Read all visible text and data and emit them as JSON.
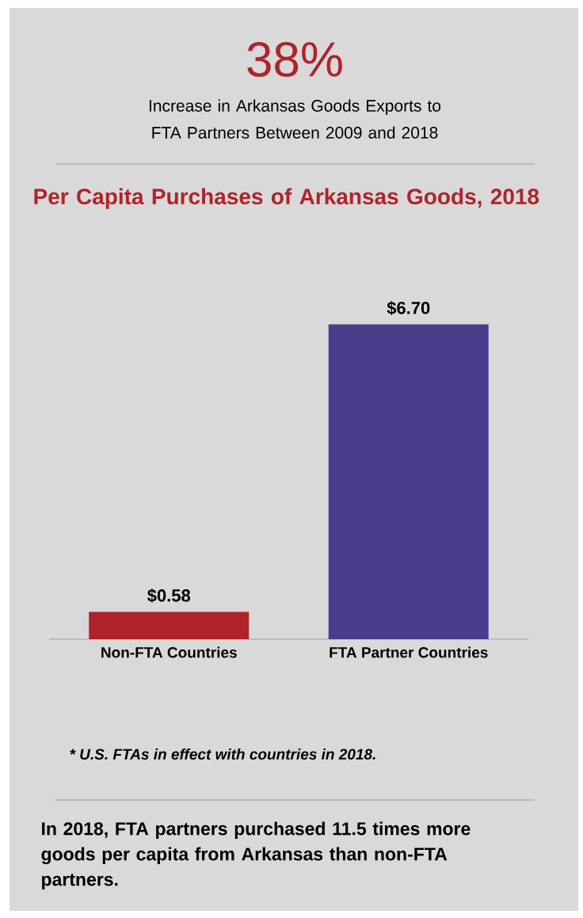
{
  "chart_data": {
    "type": "bar",
    "title": "Per Capita Purchases of Arkansas Goods, 2018",
    "categories": [
      "Non-FTA Countries",
      "FTA Partner Countries"
    ],
    "values": [
      0.58,
      6.7
    ],
    "colors": [
      "#b0232b",
      "#4a3d8c"
    ],
    "value_labels": [
      "$0.58",
      "$6.70"
    ],
    "annotations": [
      "38%",
      "Increase in Arkansas Goods Exports to FTA Partners Between 2009 and 2018",
      "* U.S. FTAs in effect with countries in 2018.",
      "In 2018, FTA partners purchased 11.5 times more goods per capita from Arkansas than non-FTA partners."
    ]
  }
}
